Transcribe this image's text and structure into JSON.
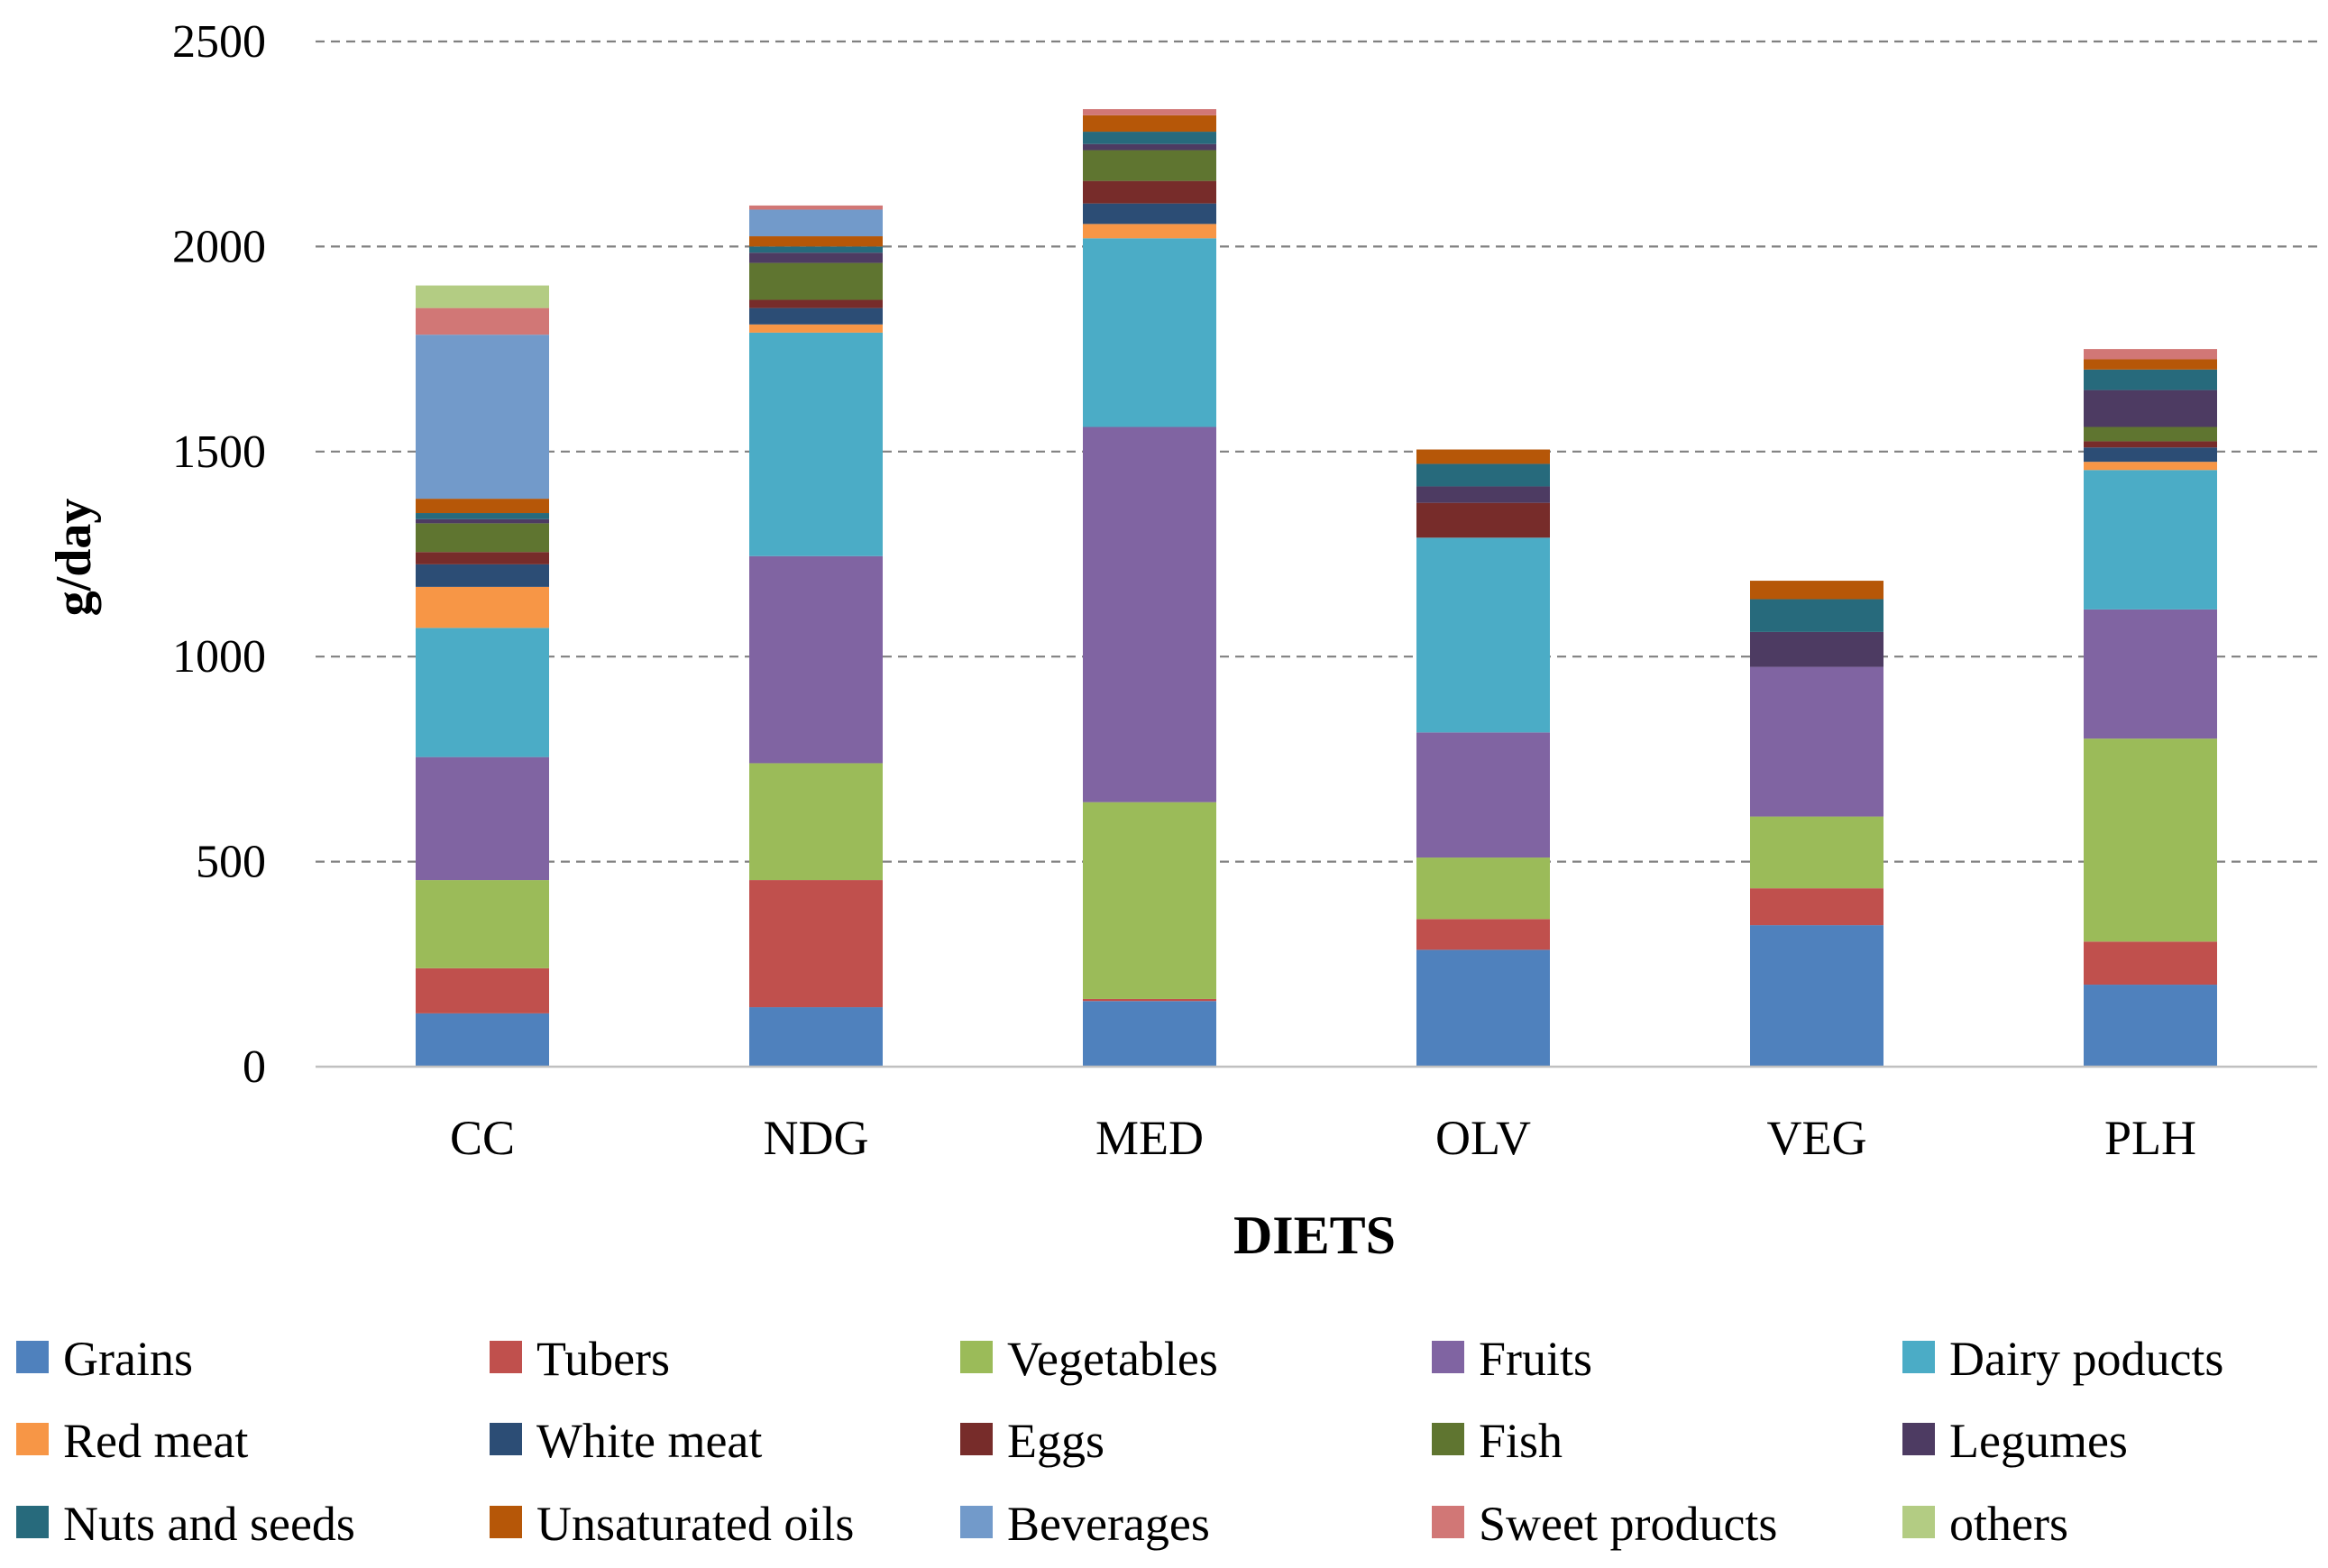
{
  "chart_data": {
    "type": "bar",
    "stacked": true,
    "title": "",
    "xlabel": "DIETS",
    "ylabel": "g/day",
    "ylim": [
      0,
      2500
    ],
    "yticks": [
      0,
      500,
      1000,
      1500,
      2000,
      2500
    ],
    "ytick_labels": [
      "0",
      "500",
      "1000",
      "1500",
      "2000",
      "2500"
    ],
    "grid": true,
    "legend_position": "bottom",
    "categories": [
      "CC",
      "NDG",
      "MED",
      "OLV",
      "VEG",
      "PLH"
    ],
    "series": [
      {
        "name": "Grains",
        "color": "#4f81bd",
        "values": [
          130,
          145,
          160,
          285,
          345,
          200
        ]
      },
      {
        "name": "Tubers",
        "color": "#c0504d",
        "values": [
          110,
          310,
          5,
          75,
          90,
          105
        ]
      },
      {
        "name": "Vegetables",
        "color": "#9bbb59",
        "values": [
          215,
          285,
          480,
          150,
          175,
          495
        ]
      },
      {
        "name": "Fruits",
        "color": "#8064a2",
        "values": [
          300,
          505,
          915,
          305,
          365,
          315
        ]
      },
      {
        "name": "Dairy poducts",
        "color": "#4bacc6",
        "values": [
          315,
          545,
          460,
          475,
          0,
          340
        ]
      },
      {
        "name": "Red meat",
        "color": "#f79646",
        "values": [
          100,
          20,
          35,
          0,
          0,
          20
        ]
      },
      {
        "name": "White meat",
        "color": "#2c4d75",
        "values": [
          55,
          40,
          50,
          0,
          0,
          35
        ]
      },
      {
        "name": "Eggs",
        "color": "#772c2a",
        "values": [
          30,
          20,
          55,
          85,
          0,
          15
        ]
      },
      {
        "name": "Fish",
        "color": "#5f7530",
        "values": [
          70,
          90,
          75,
          0,
          0,
          35
        ]
      },
      {
        "name": "Legumes",
        "color": "#4d3b62",
        "values": [
          10,
          25,
          15,
          40,
          85,
          90
        ]
      },
      {
        "name": "Nuts and seeds",
        "color": "#276a7c",
        "values": [
          15,
          15,
          30,
          55,
          80,
          50
        ]
      },
      {
        "name": "Unsaturated oils",
        "color": "#b65708",
        "values": [
          35,
          25,
          40,
          35,
          45,
          25
        ]
      },
      {
        "name": "Beverages",
        "color": "#729aca",
        "values": [
          400,
          65,
          0,
          0,
          0,
          0
        ]
      },
      {
        "name": "Sweet products",
        "color": "#d17776",
        "values": [
          65,
          10,
          15,
          0,
          0,
          25
        ]
      },
      {
        "name": "others",
        "color": "#b3cc83",
        "values": [
          55,
          0,
          0,
          0,
          0,
          0
        ]
      }
    ]
  },
  "colors": {
    "grid": "#808080",
    "axis": "#c0c0c0",
    "text": "#000000"
  }
}
